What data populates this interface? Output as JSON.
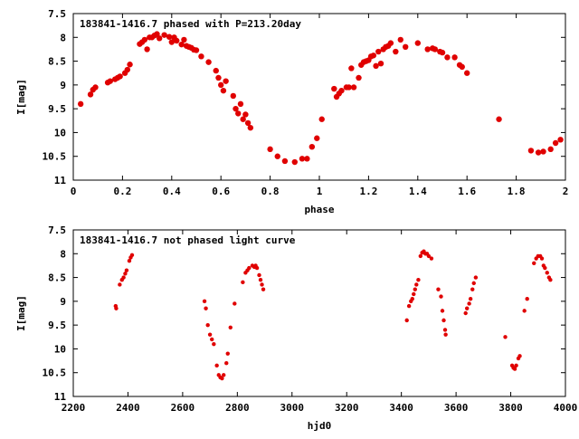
{
  "chart_data": [
    {
      "type": "scatter",
      "title": "183841-1416.7 phased with P=213.20day",
      "xlabel": "phase",
      "ylabel": "I[mag]",
      "xlim": [
        0,
        2
      ],
      "ylim": [
        7.5,
        11
      ],
      "y_inverted": true,
      "grid": false,
      "legend": "none",
      "x_ticks": [
        "0",
        "0.2",
        "0.4",
        "0.6",
        "0.8",
        "1",
        "1.2",
        "1.4",
        "1.6",
        "1.8",
        "2"
      ],
      "y_ticks": [
        "7.5",
        "8",
        "8.5",
        "9",
        "9.5",
        "10",
        "10.5",
        "11"
      ],
      "series": [
        {
          "color": "#e00000",
          "points": [
            [
              0.03,
              9.4
            ],
            [
              0.07,
              9.2
            ],
            [
              0.08,
              9.1
            ],
            [
              0.09,
              9.05
            ],
            [
              0.14,
              8.95
            ],
            [
              0.15,
              8.92
            ],
            [
              0.17,
              8.88
            ],
            [
              0.18,
              8.85
            ],
            [
              0.19,
              8.82
            ],
            [
              0.21,
              8.75
            ],
            [
              0.22,
              8.68
            ],
            [
              0.23,
              8.57
            ],
            [
              0.27,
              8.14
            ],
            [
              0.28,
              8.1
            ],
            [
              0.29,
              8.05
            ],
            [
              0.3,
              8.25
            ],
            [
              0.31,
              8.0
            ],
            [
              0.32,
              8.0
            ],
            [
              0.33,
              7.96
            ],
            [
              0.34,
              7.93
            ],
            [
              0.35,
              8.02
            ],
            [
              0.37,
              7.95
            ],
            [
              0.39,
              7.99
            ],
            [
              0.4,
              8.1
            ],
            [
              0.41,
              8.0
            ],
            [
              0.42,
              8.07
            ],
            [
              0.44,
              8.15
            ],
            [
              0.45,
              8.05
            ],
            [
              0.46,
              8.18
            ],
            [
              0.47,
              8.2
            ],
            [
              0.48,
              8.22
            ],
            [
              0.49,
              8.26
            ],
            [
              0.5,
              8.27
            ],
            [
              0.52,
              8.4
            ],
            [
              0.55,
              8.52
            ],
            [
              0.58,
              8.7
            ],
            [
              0.59,
              8.85
            ],
            [
              0.6,
              9.0
            ],
            [
              0.61,
              9.12
            ],
            [
              0.62,
              8.92
            ],
            [
              0.65,
              9.23
            ],
            [
              0.66,
              9.5
            ],
            [
              0.67,
              9.6
            ],
            [
              0.68,
              9.4
            ],
            [
              0.69,
              9.72
            ],
            [
              0.7,
              9.62
            ],
            [
              0.71,
              9.8
            ],
            [
              0.72,
              9.9
            ],
            [
              0.8,
              10.35
            ],
            [
              0.83,
              10.5
            ],
            [
              0.86,
              10.6
            ],
            [
              0.9,
              10.62
            ],
            [
              0.93,
              10.55
            ],
            [
              0.95,
              10.55
            ],
            [
              0.97,
              10.3
            ],
            [
              0.99,
              10.12
            ],
            [
              1.01,
              9.72
            ],
            [
              1.06,
              9.08
            ],
            [
              1.07,
              9.25
            ],
            [
              1.08,
              9.18
            ],
            [
              1.09,
              9.12
            ],
            [
              1.11,
              9.05
            ],
            [
              1.12,
              9.05
            ],
            [
              1.13,
              8.65
            ],
            [
              1.14,
              9.05
            ],
            [
              1.16,
              8.85
            ],
            [
              1.17,
              8.58
            ],
            [
              1.18,
              8.52
            ],
            [
              1.19,
              8.5
            ],
            [
              1.2,
              8.48
            ],
            [
              1.21,
              8.4
            ],
            [
              1.22,
              8.38
            ],
            [
              1.23,
              8.6
            ],
            [
              1.24,
              8.3
            ],
            [
              1.25,
              8.55
            ],
            [
              1.26,
              8.25
            ],
            [
              1.27,
              8.2
            ],
            [
              1.28,
              8.18
            ],
            [
              1.29,
              8.12
            ],
            [
              1.31,
              8.3
            ],
            [
              1.33,
              8.05
            ],
            [
              1.35,
              8.2
            ],
            [
              1.4,
              8.12
            ],
            [
              1.44,
              8.25
            ],
            [
              1.46,
              8.23
            ],
            [
              1.47,
              8.25
            ],
            [
              1.49,
              8.3
            ],
            [
              1.5,
              8.32
            ],
            [
              1.52,
              8.42
            ],
            [
              1.55,
              8.42
            ],
            [
              1.57,
              8.58
            ],
            [
              1.58,
              8.62
            ],
            [
              1.6,
              8.75
            ],
            [
              1.73,
              9.72
            ],
            [
              1.86,
              10.38
            ],
            [
              1.89,
              10.42
            ],
            [
              1.91,
              10.4
            ],
            [
              1.94,
              10.35
            ],
            [
              1.96,
              10.22
            ],
            [
              1.98,
              10.15
            ]
          ]
        }
      ]
    },
    {
      "type": "scatter",
      "title": "183841-1416.7 not phased light curve",
      "xlabel": "hjd0",
      "ylabel": "I[mag]",
      "xlim": [
        2200,
        4000
      ],
      "ylim": [
        7.5,
        11
      ],
      "y_inverted": true,
      "grid": false,
      "legend": "none",
      "x_ticks": [
        "2200",
        "2400",
        "2600",
        "2800",
        "3000",
        "3200",
        "3400",
        "3600",
        "3800",
        "4000"
      ],
      "y_ticks": [
        "7.5",
        "8",
        "8.5",
        "9",
        "9.5",
        "10",
        "10.5",
        "11"
      ],
      "series": [
        {
          "color": "#e00000",
          "points": [
            [
              2355,
              9.1
            ],
            [
              2357,
              9.15
            ],
            [
              2370,
              8.65
            ],
            [
              2378,
              8.55
            ],
            [
              2384,
              8.5
            ],
            [
              2390,
              8.42
            ],
            [
              2395,
              8.35
            ],
            [
              2405,
              8.15
            ],
            [
              2410,
              8.08
            ],
            [
              2415,
              8.03
            ],
            [
              2680,
              9.0
            ],
            [
              2685,
              9.15
            ],
            [
              2692,
              9.5
            ],
            [
              2700,
              9.7
            ],
            [
              2707,
              9.8
            ],
            [
              2714,
              9.9
            ],
            [
              2725,
              10.35
            ],
            [
              2732,
              10.55
            ],
            [
              2738,
              10.6
            ],
            [
              2744,
              10.62
            ],
            [
              2750,
              10.55
            ],
            [
              2760,
              10.3
            ],
            [
              2765,
              10.1
            ],
            [
              2775,
              9.55
            ],
            [
              2790,
              9.05
            ],
            [
              2820,
              8.6
            ],
            [
              2830,
              8.4
            ],
            [
              2837,
              8.35
            ],
            [
              2843,
              8.3
            ],
            [
              2855,
              8.25
            ],
            [
              2862,
              8.28
            ],
            [
              2867,
              8.25
            ],
            [
              2872,
              8.3
            ],
            [
              2880,
              8.45
            ],
            [
              2885,
              8.55
            ],
            [
              2890,
              8.65
            ],
            [
              2895,
              8.75
            ],
            [
              3420,
              9.4
            ],
            [
              3428,
              9.1
            ],
            [
              3435,
              9.0
            ],
            [
              3440,
              8.95
            ],
            [
              3445,
              8.85
            ],
            [
              3450,
              8.75
            ],
            [
              3455,
              8.65
            ],
            [
              3462,
              8.55
            ],
            [
              3470,
              8.05
            ],
            [
              3476,
              7.98
            ],
            [
              3482,
              7.95
            ],
            [
              3488,
              8.0
            ],
            [
              3494,
              8.0
            ],
            [
              3500,
              8.05
            ],
            [
              3510,
              8.1
            ],
            [
              3535,
              8.75
            ],
            [
              3545,
              8.9
            ],
            [
              3550,
              9.2
            ],
            [
              3555,
              9.4
            ],
            [
              3560,
              9.6
            ],
            [
              3562,
              9.7
            ],
            [
              3635,
              9.25
            ],
            [
              3640,
              9.15
            ],
            [
              3648,
              9.05
            ],
            [
              3653,
              8.95
            ],
            [
              3660,
              8.75
            ],
            [
              3665,
              8.62
            ],
            [
              3672,
              8.5
            ],
            [
              3780,
              9.75
            ],
            [
              3805,
              10.35
            ],
            [
              3810,
              10.4
            ],
            [
              3815,
              10.42
            ],
            [
              3820,
              10.35
            ],
            [
              3828,
              10.2
            ],
            [
              3833,
              10.15
            ],
            [
              3850,
              9.2
            ],
            [
              3860,
              8.95
            ],
            [
              3885,
              8.2
            ],
            [
              3893,
              8.1
            ],
            [
              3900,
              8.05
            ],
            [
              3908,
              8.05
            ],
            [
              3914,
              8.1
            ],
            [
              3920,
              8.25
            ],
            [
              3925,
              8.3
            ],
            [
              3933,
              8.4
            ],
            [
              3940,
              8.5
            ],
            [
              3945,
              8.55
            ]
          ]
        }
      ]
    }
  ]
}
